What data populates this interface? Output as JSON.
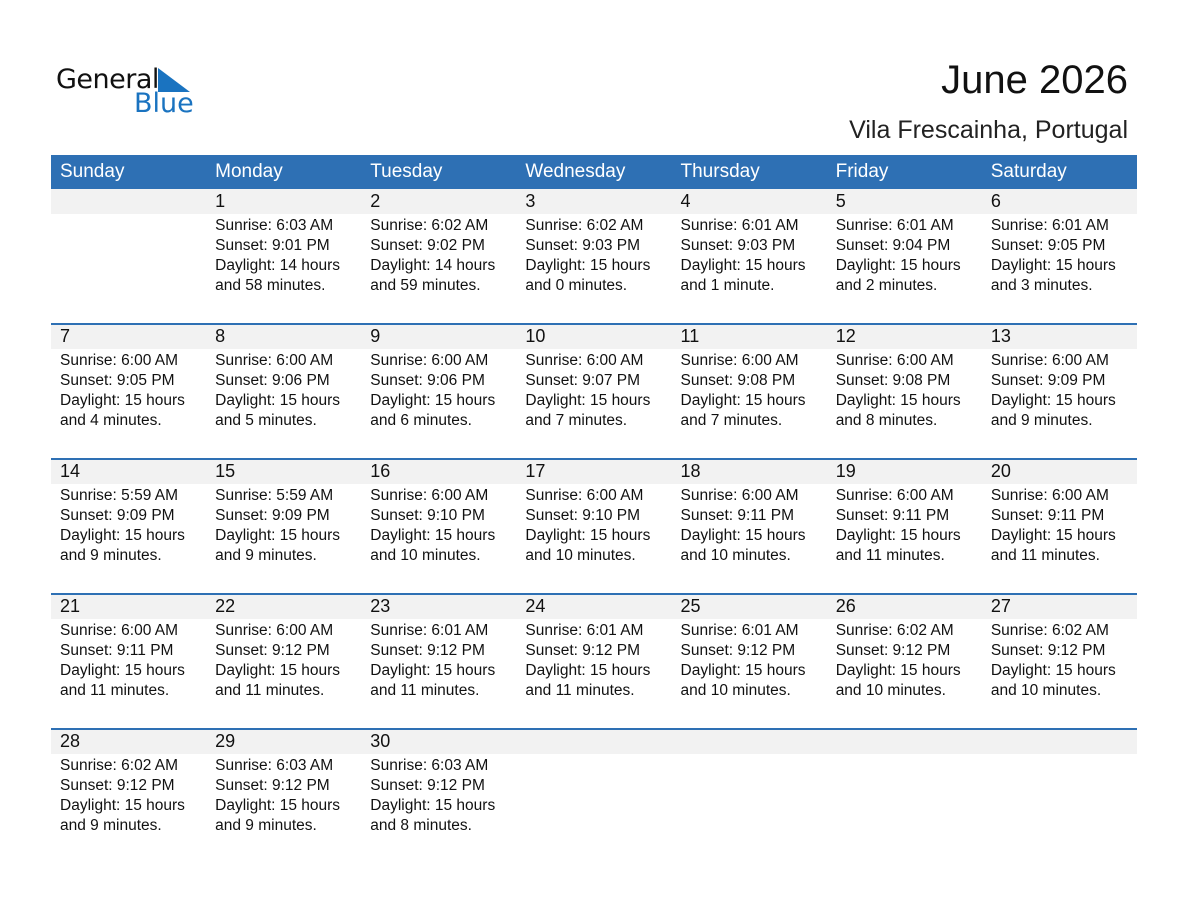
{
  "logo": {
    "line1": "General",
    "line2": "Blue",
    "color": "#1a73c0"
  },
  "title": "June 2026",
  "location": "Vila Frescainha, Portugal",
  "colors": {
    "header": "#2e70b4",
    "strip": "#f2f2f2"
  },
  "weekdays": [
    "Sunday",
    "Monday",
    "Tuesday",
    "Wednesday",
    "Thursday",
    "Friday",
    "Saturday"
  ],
  "weeks": [
    [
      null,
      {
        "day": "1",
        "sunrise": "Sunrise: 6:03 AM",
        "sunset": "Sunset: 9:01 PM",
        "daylight1": "Daylight: 14 hours",
        "daylight2": "and 58 minutes."
      },
      {
        "day": "2",
        "sunrise": "Sunrise: 6:02 AM",
        "sunset": "Sunset: 9:02 PM",
        "daylight1": "Daylight: 14 hours",
        "daylight2": "and 59 minutes."
      },
      {
        "day": "3",
        "sunrise": "Sunrise: 6:02 AM",
        "sunset": "Sunset: 9:03 PM",
        "daylight1": "Daylight: 15 hours",
        "daylight2": "and 0 minutes."
      },
      {
        "day": "4",
        "sunrise": "Sunrise: 6:01 AM",
        "sunset": "Sunset: 9:03 PM",
        "daylight1": "Daylight: 15 hours",
        "daylight2": "and 1 minute."
      },
      {
        "day": "5",
        "sunrise": "Sunrise: 6:01 AM",
        "sunset": "Sunset: 9:04 PM",
        "daylight1": "Daylight: 15 hours",
        "daylight2": "and 2 minutes."
      },
      {
        "day": "6",
        "sunrise": "Sunrise: 6:01 AM",
        "sunset": "Sunset: 9:05 PM",
        "daylight1": "Daylight: 15 hours",
        "daylight2": "and 3 minutes."
      }
    ],
    [
      {
        "day": "7",
        "sunrise": "Sunrise: 6:00 AM",
        "sunset": "Sunset: 9:05 PM",
        "daylight1": "Daylight: 15 hours",
        "daylight2": "and 4 minutes."
      },
      {
        "day": "8",
        "sunrise": "Sunrise: 6:00 AM",
        "sunset": "Sunset: 9:06 PM",
        "daylight1": "Daylight: 15 hours",
        "daylight2": "and 5 minutes."
      },
      {
        "day": "9",
        "sunrise": "Sunrise: 6:00 AM",
        "sunset": "Sunset: 9:06 PM",
        "daylight1": "Daylight: 15 hours",
        "daylight2": "and 6 minutes."
      },
      {
        "day": "10",
        "sunrise": "Sunrise: 6:00 AM",
        "sunset": "Sunset: 9:07 PM",
        "daylight1": "Daylight: 15 hours",
        "daylight2": "and 7 minutes."
      },
      {
        "day": "11",
        "sunrise": "Sunrise: 6:00 AM",
        "sunset": "Sunset: 9:08 PM",
        "daylight1": "Daylight: 15 hours",
        "daylight2": "and 7 minutes."
      },
      {
        "day": "12",
        "sunrise": "Sunrise: 6:00 AM",
        "sunset": "Sunset: 9:08 PM",
        "daylight1": "Daylight: 15 hours",
        "daylight2": "and 8 minutes."
      },
      {
        "day": "13",
        "sunrise": "Sunrise: 6:00 AM",
        "sunset": "Sunset: 9:09 PM",
        "daylight1": "Daylight: 15 hours",
        "daylight2": "and 9 minutes."
      }
    ],
    [
      {
        "day": "14",
        "sunrise": "Sunrise: 5:59 AM",
        "sunset": "Sunset: 9:09 PM",
        "daylight1": "Daylight: 15 hours",
        "daylight2": "and 9 minutes."
      },
      {
        "day": "15",
        "sunrise": "Sunrise: 5:59 AM",
        "sunset": "Sunset: 9:09 PM",
        "daylight1": "Daylight: 15 hours",
        "daylight2": "and 9 minutes."
      },
      {
        "day": "16",
        "sunrise": "Sunrise: 6:00 AM",
        "sunset": "Sunset: 9:10 PM",
        "daylight1": "Daylight: 15 hours",
        "daylight2": "and 10 minutes."
      },
      {
        "day": "17",
        "sunrise": "Sunrise: 6:00 AM",
        "sunset": "Sunset: 9:10 PM",
        "daylight1": "Daylight: 15 hours",
        "daylight2": "and 10 minutes."
      },
      {
        "day": "18",
        "sunrise": "Sunrise: 6:00 AM",
        "sunset": "Sunset: 9:11 PM",
        "daylight1": "Daylight: 15 hours",
        "daylight2": "and 10 minutes."
      },
      {
        "day": "19",
        "sunrise": "Sunrise: 6:00 AM",
        "sunset": "Sunset: 9:11 PM",
        "daylight1": "Daylight: 15 hours",
        "daylight2": "and 11 minutes."
      },
      {
        "day": "20",
        "sunrise": "Sunrise: 6:00 AM",
        "sunset": "Sunset: 9:11 PM",
        "daylight1": "Daylight: 15 hours",
        "daylight2": "and 11 minutes."
      }
    ],
    [
      {
        "day": "21",
        "sunrise": "Sunrise: 6:00 AM",
        "sunset": "Sunset: 9:11 PM",
        "daylight1": "Daylight: 15 hours",
        "daylight2": "and 11 minutes."
      },
      {
        "day": "22",
        "sunrise": "Sunrise: 6:00 AM",
        "sunset": "Sunset: 9:12 PM",
        "daylight1": "Daylight: 15 hours",
        "daylight2": "and 11 minutes."
      },
      {
        "day": "23",
        "sunrise": "Sunrise: 6:01 AM",
        "sunset": "Sunset: 9:12 PM",
        "daylight1": "Daylight: 15 hours",
        "daylight2": "and 11 minutes."
      },
      {
        "day": "24",
        "sunrise": "Sunrise: 6:01 AM",
        "sunset": "Sunset: 9:12 PM",
        "daylight1": "Daylight: 15 hours",
        "daylight2": "and 11 minutes."
      },
      {
        "day": "25",
        "sunrise": "Sunrise: 6:01 AM",
        "sunset": "Sunset: 9:12 PM",
        "daylight1": "Daylight: 15 hours",
        "daylight2": "and 10 minutes."
      },
      {
        "day": "26",
        "sunrise": "Sunrise: 6:02 AM",
        "sunset": "Sunset: 9:12 PM",
        "daylight1": "Daylight: 15 hours",
        "daylight2": "and 10 minutes."
      },
      {
        "day": "27",
        "sunrise": "Sunrise: 6:02 AM",
        "sunset": "Sunset: 9:12 PM",
        "daylight1": "Daylight: 15 hours",
        "daylight2": "and 10 minutes."
      }
    ],
    [
      {
        "day": "28",
        "sunrise": "Sunrise: 6:02 AM",
        "sunset": "Sunset: 9:12 PM",
        "daylight1": "Daylight: 15 hours",
        "daylight2": "and 9 minutes."
      },
      {
        "day": "29",
        "sunrise": "Sunrise: 6:03 AM",
        "sunset": "Sunset: 9:12 PM",
        "daylight1": "Daylight: 15 hours",
        "daylight2": "and 9 minutes."
      },
      {
        "day": "30",
        "sunrise": "Sunrise: 6:03 AM",
        "sunset": "Sunset: 9:12 PM",
        "daylight1": "Daylight: 15 hours",
        "daylight2": "and 8 minutes."
      },
      null,
      null,
      null,
      null
    ]
  ]
}
